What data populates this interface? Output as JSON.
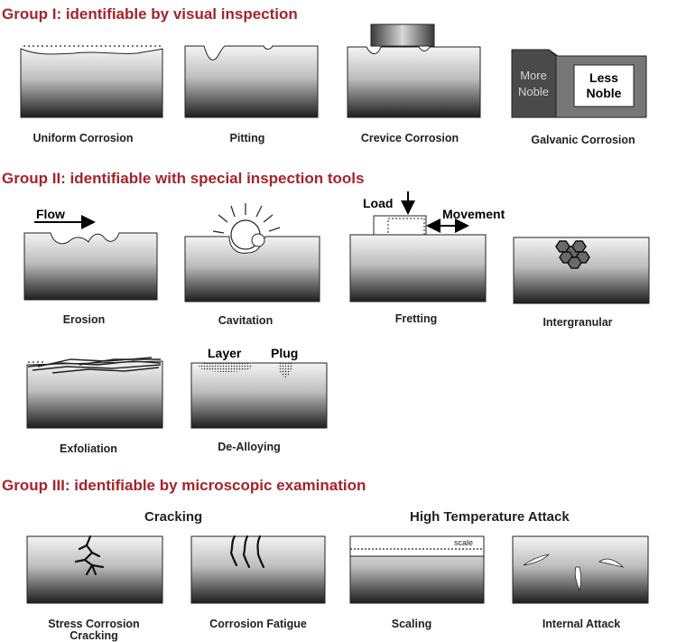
{
  "groups": {
    "g1": "Group I: identifiable by visual inspection",
    "g2": "Group II: identifiable with special inspection tools",
    "g3": "Group III: identifiable by microscopic examination"
  },
  "group1": {
    "uniform": "Uniform Corrosion",
    "pitting": "Pitting",
    "crevice": "Crevice Corrosion",
    "galvanic": "Galvanic Corrosion",
    "more_noble_1": "More",
    "more_noble_2": "Noble",
    "less_noble_1": "Less",
    "less_noble_2": "Noble"
  },
  "group2": {
    "erosion": "Erosion",
    "cavitation": "Cavitation",
    "fretting": "Fretting",
    "intergranular": "Intergranular",
    "exfoliation": "Exfoliation",
    "dealloying": "De-Alloying",
    "flow": "Flow",
    "load": "Load",
    "movement": "Movement",
    "layer": "Layer",
    "plug": "Plug"
  },
  "group3": {
    "cracking": "Cracking",
    "high_temp": "High Temperature Attack",
    "scc_1": "Stress Corrosion",
    "scc_2": "Cracking",
    "fatigue": "Corrosion Fatigue",
    "scaling": "Scaling",
    "internal": "Internal Attack",
    "scale": "scale"
  },
  "colors": {
    "title": "#a5232b",
    "metal_top": "#f4f4f4",
    "metal_bottom": "#1e1e1e"
  }
}
